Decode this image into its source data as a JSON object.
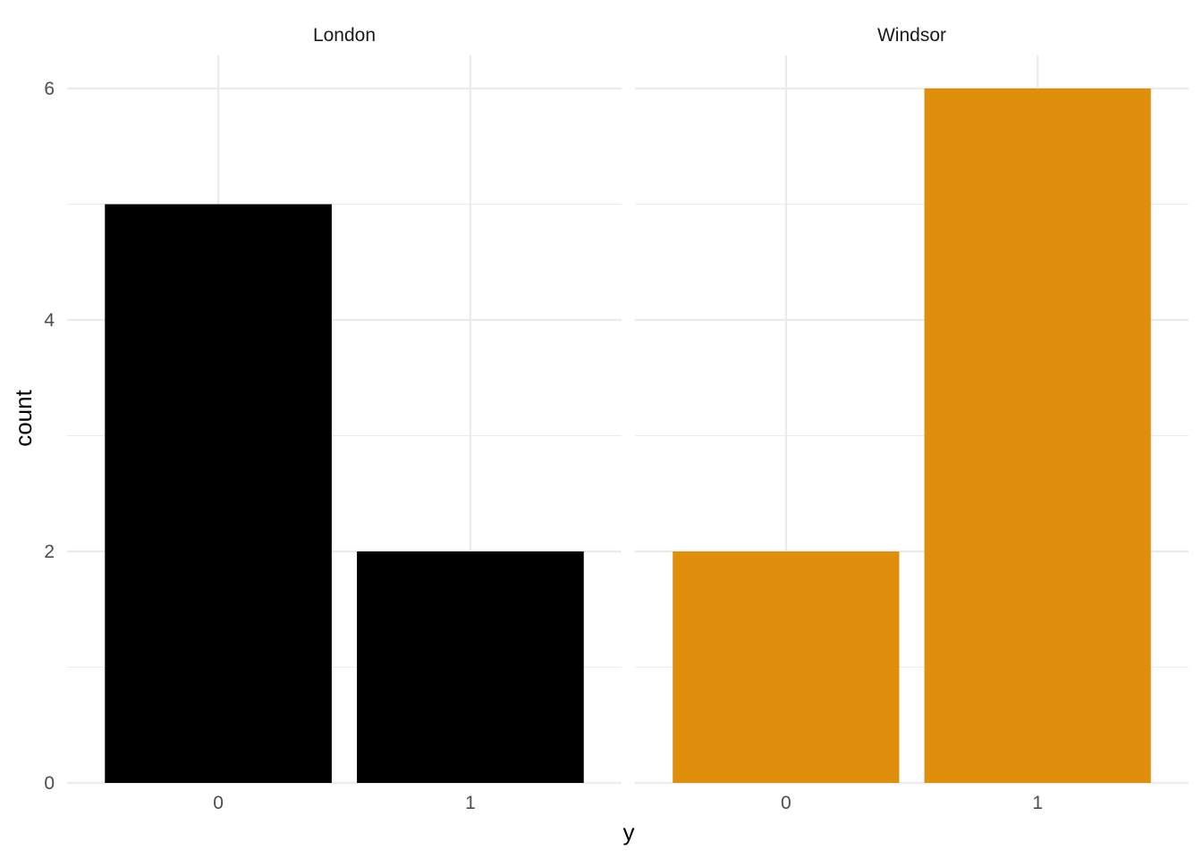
{
  "chart_data": {
    "type": "bar",
    "xlabel": "y",
    "ylabel": "count",
    "ylim": [
      0,
      6.3
    ],
    "y_ticks": [
      "0",
      "2",
      "4",
      "6"
    ],
    "y_tick_values": [
      0,
      2,
      4,
      6
    ],
    "y_minor_values": [
      1,
      3,
      5
    ],
    "grid": true,
    "legend": "none",
    "facets": [
      {
        "name": "London",
        "categories": [
          "0",
          "1"
        ],
        "values": [
          5,
          2
        ],
        "color": "#000000"
      },
      {
        "name": "Windsor",
        "categories": [
          "0",
          "1"
        ],
        "values": [
          2,
          6
        ],
        "color": "#DF8F0B"
      }
    ]
  }
}
